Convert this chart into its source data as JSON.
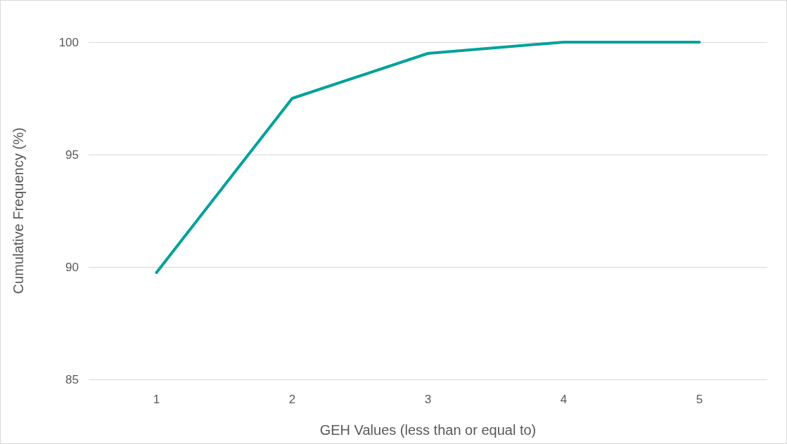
{
  "chart_data": {
    "type": "line",
    "xlabel": "GEH Values (less than or equal to)",
    "ylabel": "Cumulative Frequency (%)",
    "categories": [
      "1",
      "2",
      "3",
      "4",
      "5"
    ],
    "series": [
      {
        "color": "#00a19a",
        "values": [
          89.75,
          97.5,
          99.5,
          100,
          100
        ]
      }
    ],
    "ylim": [
      85,
      100
    ],
    "yticks": [
      85,
      90,
      95,
      100
    ],
    "grid": "y",
    "marker": "none",
    "line_style": "solid"
  }
}
